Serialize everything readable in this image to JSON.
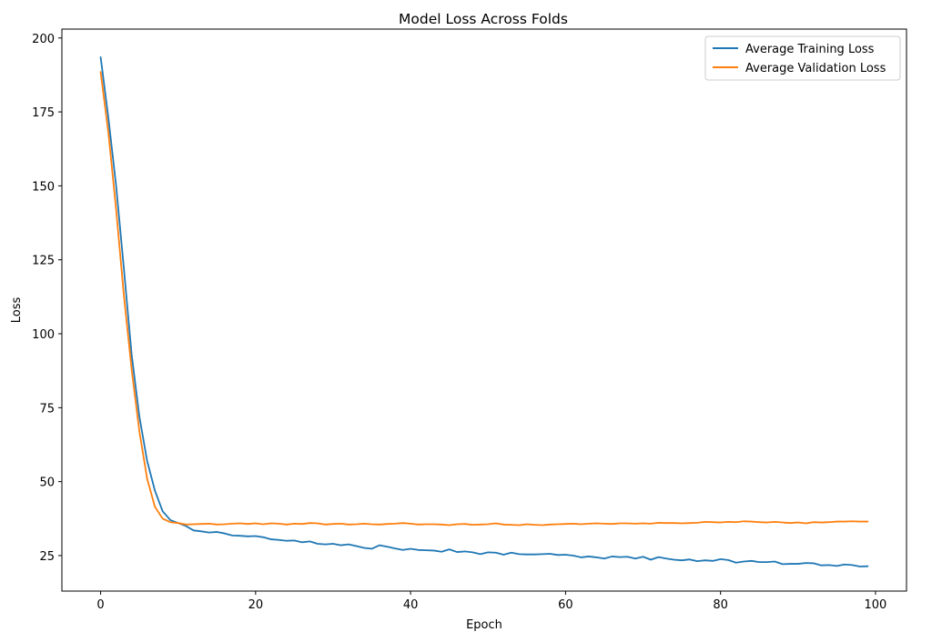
{
  "chart_data": {
    "type": "line",
    "title": "Model Loss Across Folds",
    "xlabel": "Epoch",
    "ylabel": "Loss",
    "xlim": [
      -5,
      104
    ],
    "ylim": [
      13,
      203
    ],
    "xticks": [
      0,
      20,
      40,
      60,
      80,
      100
    ],
    "yticks": [
      25,
      50,
      75,
      100,
      125,
      150,
      175,
      200
    ],
    "grid": false,
    "legend_position": "top-right",
    "x": [
      0,
      1,
      2,
      3,
      4,
      5,
      6,
      7,
      8,
      9,
      10,
      11,
      12,
      13,
      14,
      15,
      16,
      17,
      18,
      19,
      20,
      21,
      22,
      23,
      24,
      25,
      26,
      27,
      28,
      29,
      30,
      31,
      32,
      33,
      34,
      35,
      36,
      37,
      38,
      39,
      40,
      41,
      42,
      43,
      44,
      45,
      46,
      47,
      48,
      49,
      50,
      51,
      52,
      53,
      54,
      55,
      56,
      57,
      58,
      59,
      60,
      61,
      62,
      63,
      64,
      65,
      66,
      67,
      68,
      69,
      70,
      71,
      72,
      73,
      74,
      75,
      76,
      77,
      78,
      79,
      80,
      81,
      82,
      83,
      84,
      85,
      86,
      87,
      88,
      89,
      90,
      91,
      92,
      93,
      94,
      95,
      96,
      97,
      98,
      99
    ],
    "series": [
      {
        "name": "Average Training Loss",
        "color": "#1f77b4",
        "values": [
          193.5,
          173,
          150,
          122,
          93,
          72,
          57,
          47,
          40,
          37,
          36,
          35,
          33.5,
          33.2,
          32.8,
          33,
          32.5,
          31.8,
          31.7,
          31.5,
          31.6,
          31.2,
          30.5,
          30.3,
          30,
          30.1,
          29.5,
          29.8,
          29,
          28.8,
          29,
          28.5,
          28.8,
          28.2,
          27.6,
          27.3,
          28.5,
          28,
          27.4,
          26.9,
          27.3,
          26.9,
          26.8,
          26.7,
          26.3,
          27.1,
          26.2,
          26.4,
          26.1,
          25.5,
          26.1,
          26,
          25.3,
          26,
          25.5,
          25.4,
          25.4,
          25.5,
          25.6,
          25.2,
          25.3,
          25,
          24.4,
          24.7,
          24.4,
          24,
          24.7,
          24.5,
          24.6,
          24,
          24.6,
          23.6,
          24.5,
          24,
          23.6,
          23.4,
          23.7,
          23.1,
          23.4,
          23.2,
          23.8,
          23.5,
          22.6,
          23,
          23.2,
          22.8,
          22.8,
          23,
          22.1,
          22.2,
          22.2,
          22.5,
          22.4,
          21.7,
          21.8,
          21.5,
          22,
          21.8,
          21.3,
          21.4
        ]
      },
      {
        "name": "Average Validation Loss",
        "color": "#ff7f0e",
        "values": [
          188.5,
          168,
          142,
          113,
          88,
          67,
          51,
          41.5,
          37.5,
          36.3,
          36,
          35.5,
          35.6,
          35.7,
          35.8,
          35.5,
          35.6,
          35.8,
          35.9,
          35.7,
          35.9,
          35.6,
          35.9,
          35.8,
          35.5,
          35.8,
          35.7,
          36,
          35.9,
          35.5,
          35.7,
          35.8,
          35.5,
          35.6,
          35.8,
          35.6,
          35.5,
          35.7,
          35.8,
          36,
          35.8,
          35.5,
          35.6,
          35.6,
          35.5,
          35.3,
          35.6,
          35.7,
          35.4,
          35.5,
          35.6,
          35.9,
          35.5,
          35.4,
          35.3,
          35.6,
          35.4,
          35.3,
          35.5,
          35.6,
          35.7,
          35.8,
          35.6,
          35.8,
          35.9,
          35.8,
          35.7,
          35.9,
          35.9,
          35.8,
          35.9,
          35.8,
          36.1,
          36,
          36,
          35.9,
          36,
          36.1,
          36.4,
          36.3,
          36.2,
          36.4,
          36.3,
          36.6,
          36.5,
          36.3,
          36.2,
          36.4,
          36.2,
          36,
          36.2,
          35.9,
          36.3,
          36.2,
          36.3,
          36.5,
          36.5,
          36.6,
          36.5,
          36.5
        ]
      }
    ]
  }
}
